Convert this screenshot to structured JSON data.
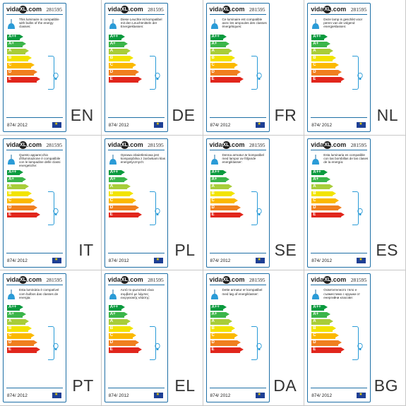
{
  "brand": "vidaXL.com",
  "brand_mark": "XL",
  "code": "281595",
  "regulation": "874/ 2012",
  "classes": [
    "A++",
    "A+",
    "A",
    "B",
    "C",
    "D",
    "E"
  ],
  "class_colors": [
    "#0a9a3e",
    "#3bb54a",
    "#a8cd3a",
    "#f2e400",
    "#fbb900",
    "#f07f1f",
    "#e1261c"
  ],
  "accent": "#1e6fa6",
  "labels": [
    {
      "lang": "EN",
      "text": "This luminaire is compatible with bulbs of the energy classes:"
    },
    {
      "lang": "DE",
      "text": "Diese Leuchte ist kompatibel mit den Leuchtmitteln der Energieklassen:"
    },
    {
      "lang": "FR",
      "text": "Ce luminaire est compatible avec les ampoules des classes énergétiques:"
    },
    {
      "lang": "NL",
      "text": "Deze lamp is geschikt voor peren van de volgend energieklassen:"
    },
    {
      "lang": "IT",
      "text": "Questo apparecchio d'illuminazione è compatibile con le lampadine delle classi energetiche:"
    },
    {
      "lang": "PL",
      "text": "Oprawa oświetleniowa jest kompatybilna z żarówkami klas energetycznych:"
    },
    {
      "lang": "SE",
      "text": "Denna armatur är kompatibel med lampor av följande energiklasser:"
    },
    {
      "lang": "ES",
      "text": "Esta luminaria es compatible con las bombillas de las clases de la energía:"
    },
    {
      "lang": "PT",
      "text": "Esta luminária é compatível com bulbos das classes de energia:"
    },
    {
      "lang": "EL",
      "text": "Αυτό το φωτιστικό είναι συμβατό με λάμπες ενεργειακής κλάσης:"
    },
    {
      "lang": "DA",
      "text": "Dette armatur er kompatibel med løg af energiklasser:"
    },
    {
      "lang": "BG",
      "text": "Осветителното тяло е съвместимо с крушки от енергийни класове:"
    }
  ]
}
